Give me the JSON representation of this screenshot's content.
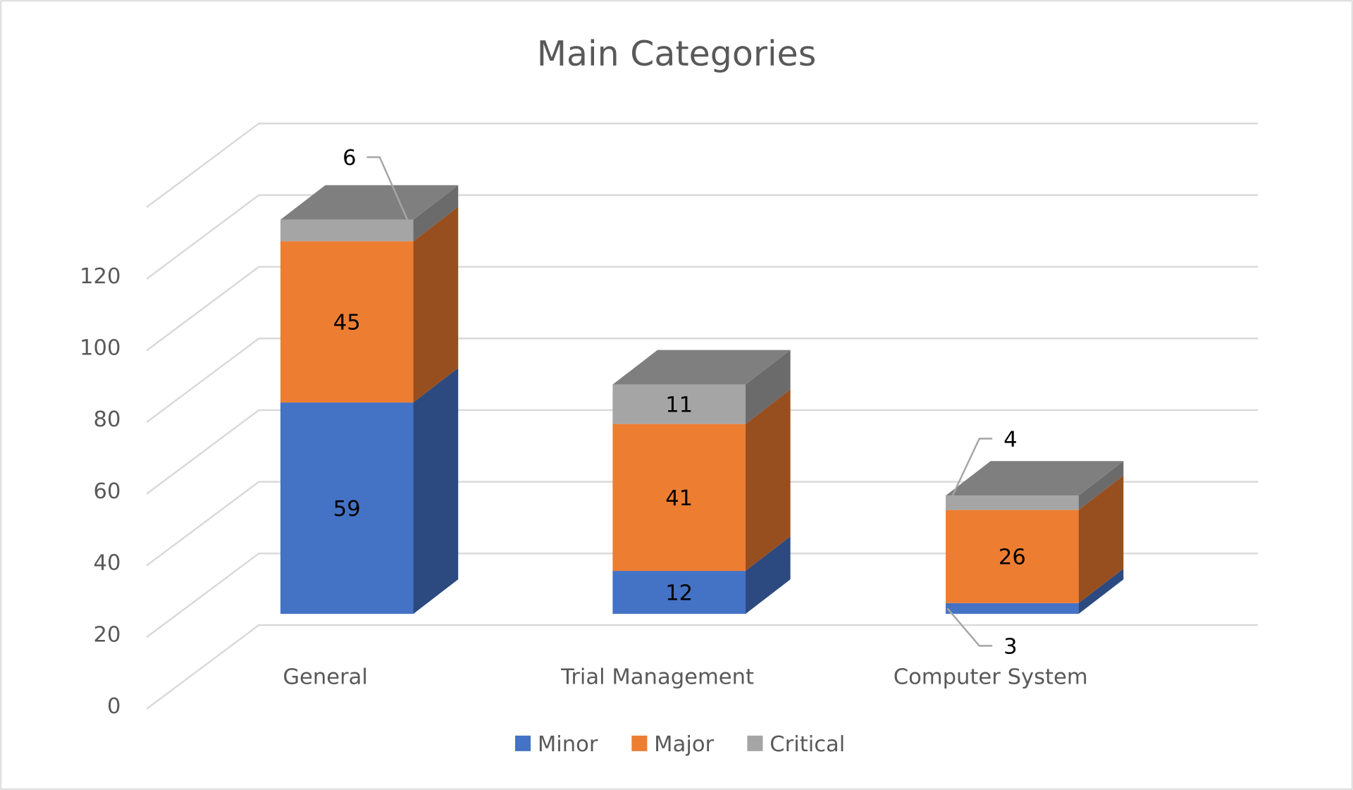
{
  "chart_data": {
    "type": "bar",
    "subtype": "3d-stacked-column",
    "title": "Main Categories",
    "categories": [
      "General",
      "Trial Management",
      "Computer System"
    ],
    "series": [
      {
        "name": "Minor",
        "color": "#4472c4",
        "side_color": "#2c4a7f",
        "values": [
          59,
          12,
          3
        ]
      },
      {
        "name": "Major",
        "color": "#ed7d31",
        "side_color": "#984f1f",
        "values": [
          45,
          41,
          26
        ]
      },
      {
        "name": "Critical",
        "color": "#a5a5a5",
        "side_color": "#6b6b6b",
        "values": [
          6,
          11,
          4
        ]
      }
    ],
    "top_color": "#7f7f7f",
    "yticks": [
      "0",
      "20",
      "40",
      "60",
      "80",
      "100",
      "120"
    ],
    "ylim": [
      0,
      140
    ],
    "grid": true,
    "legend": "bottom",
    "xlabel": "",
    "ylabel": ""
  }
}
